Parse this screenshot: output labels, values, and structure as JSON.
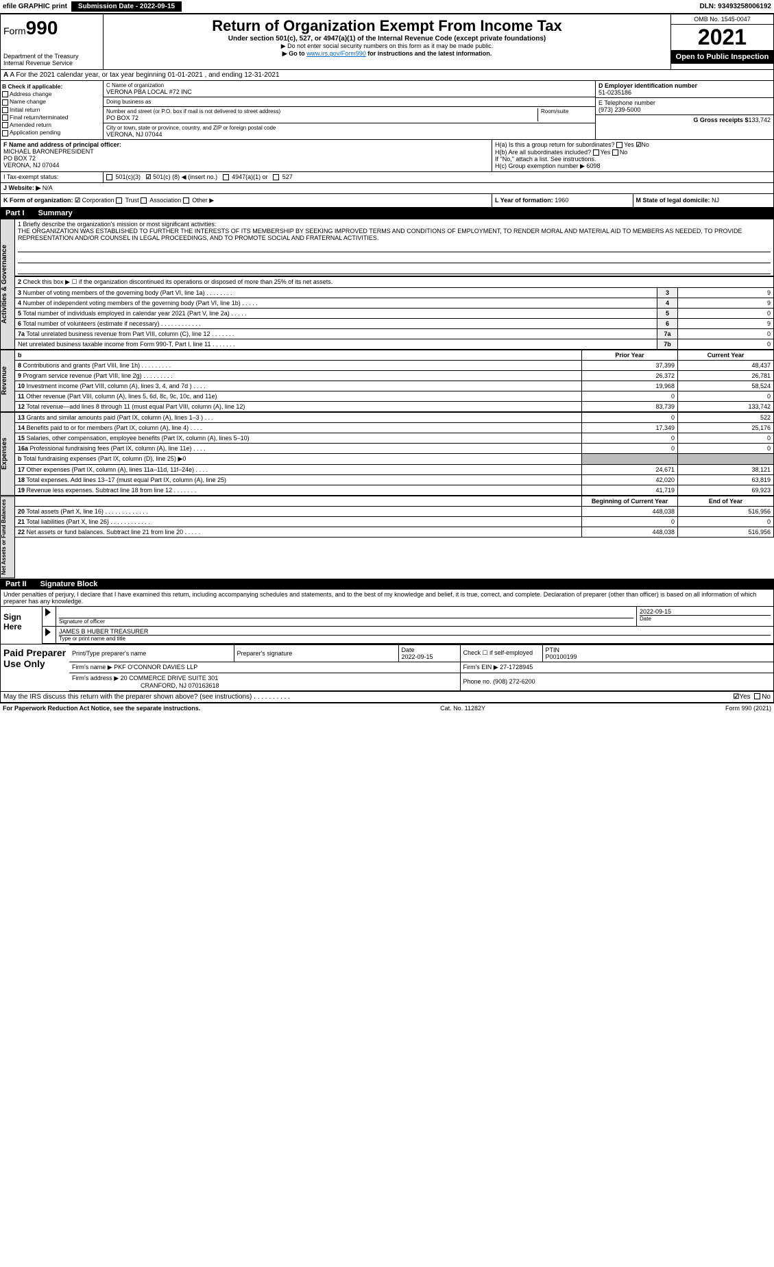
{
  "efile": {
    "graphic": "efile GRAPHIC print",
    "sub_label": "Submission Date - 2022-09-15",
    "dln": "DLN: 93493258006192"
  },
  "header": {
    "form_prefix": "Form",
    "form_num": "990",
    "title": "Return of Organization Exempt From Income Tax",
    "sub1": "Under section 501(c), 527, or 4947(a)(1) of the Internal Revenue Code (except private foundations)",
    "sub2": "▶ Do not enter social security numbers on this form as it may be made public.",
    "sub3_pre": "▶ Go to ",
    "sub3_link": "www.irs.gov/Form990",
    "sub3_post": " for instructions and the latest information.",
    "dept": "Department of the Treasury",
    "irs": "Internal Revenue Service",
    "omb": "OMB No. 1545-0047",
    "year": "2021",
    "otp": "Open to Public Inspection"
  },
  "rowA": "A For the 2021 calendar year, or tax year beginning 01-01-2021     , and ending 12-31-2021",
  "colB": {
    "hdr": "B Check if applicable:",
    "items": [
      "Address change",
      "Name change",
      "Initial return",
      "Final return/terminated",
      "Amended return",
      "Application pending"
    ]
  },
  "colC": {
    "name_lbl": "C Name of organization",
    "name": "VERONA PBA LOCAL #72 INC",
    "dba_lbl": "Doing business as",
    "dba": "",
    "addr_lbl": "Number and street (or P.O. box if mail is not delivered to street address)",
    "room_lbl": "Room/suite",
    "addr": "PO BOX 72",
    "city_lbl": "City or town, state or province, country, and ZIP or foreign postal code",
    "city": "VERONA, NJ  07044"
  },
  "colD": {
    "d_lbl": "D Employer identification number",
    "d": "51-0235186",
    "e_lbl": "E Telephone number",
    "e": "(973) 239-5000",
    "g_lbl": "G Gross receipts $",
    "g": "133,742"
  },
  "rowF": {
    "lbl": "F Name and address of principal officer:",
    "name": "MICHAEL BARONEPRESIDENT",
    "addr1": "PO BOX 72",
    "addr2": "VERONA, NJ  07044"
  },
  "rowH": {
    "a": "H(a) Is this a group return for subordinates?",
    "b": "H(b) Are all subordinates included?",
    "b2": "If \"No,\" attach a list. See instructions.",
    "c": "H(c) Group exemption number ▶",
    "c_val": "6098",
    "yes": "Yes",
    "no": "No"
  },
  "rowI": {
    "lbl": "I   Tax-exempt status:",
    "o1": "501(c)(3)",
    "o2_pre": "501(c) (",
    "o2_val": "8",
    "o2_post": ") ◀ (insert no.)",
    "o3": "4947(a)(1) or",
    "o4": "527"
  },
  "rowJ": {
    "lbl": "J   Website: ▶",
    "val": "N/A"
  },
  "rowK": {
    "lbl": "K Form of organization:",
    "o": [
      "Corporation",
      "Trust",
      "Association",
      "Other ▶"
    ],
    "l_lbl": "L Year of formation:",
    "l": "1960",
    "m_lbl": "M State of legal domicile:",
    "m": "NJ"
  },
  "part1": {
    "num": "Part I",
    "title": "Summary"
  },
  "vtabs": {
    "ag": "Activities & Governance",
    "rev": "Revenue",
    "exp": "Expenses",
    "na": "Net Assets or Fund Balances"
  },
  "mission": {
    "lbl": "1  Briefly describe the organization's mission or most significant activities:",
    "txt": "THE ORGANIZATION WAS ESTABLISHED TO FURTHER THE INTERESTS OF ITS MEMBERSHIP BY SEEKING IMPROVED TERMS AND CONDITIONS OF EMPLOYMENT, TO RENDER MORAL AND MATERIAL AID TO MEMBERS AS NEEDED, TO PROVIDE REPRESENTATION AND/OR COUNSEL IN LEGAL PROCEEDINGS, AND TO PROMOTE SOCIAL AND FRATERNAL ACTIVITIES."
  },
  "ag_lines": [
    {
      "n": "2",
      "t": "Check this box ▶ ☐ if the organization discontinued its operations or disposed of more than 25% of its net assets."
    },
    {
      "n": "3",
      "t": "Number of voting members of the governing body (Part VI, line 1a)  .   .   .   .   .   .   .   .",
      "k": "3",
      "v": "9"
    },
    {
      "n": "4",
      "t": "Number of independent voting members of the governing body (Part VI, line 1b)  .   .   .   .   .",
      "k": "4",
      "v": "9"
    },
    {
      "n": "5",
      "t": "Total number of individuals employed in calendar year 2021 (Part V, line 2a)   .   .   .   .   .",
      "k": "5",
      "v": "0"
    },
    {
      "n": "6",
      "t": "Total number of volunteers (estimate if necessary)    .   .   .   .   .   .   .   .   .   .   .   .",
      "k": "6",
      "v": "9"
    },
    {
      "n": "7a",
      "t": "Total unrelated business revenue from Part VIII, column (C), line 12  .   .   .   .   .   .   .",
      "k": "7a",
      "v": "0"
    },
    {
      "n": "",
      "t": "Net unrelated business taxable income from Form 990-T, Part I, line 11   .   .   .   .   .   .   .",
      "k": "7b",
      "v": "0"
    }
  ],
  "yr_hdr": {
    "b": "b",
    "py": "Prior Year",
    "cy": "Current Year"
  },
  "rev_lines": [
    {
      "n": "8",
      "t": "Contributions and grants (Part VIII, line 1h) .   .   .   .   .   .   .   .   .",
      "p": "37,399",
      "c": "48,437"
    },
    {
      "n": "9",
      "t": "Program service revenue (Part VIII, line 2g) .   .   .   .   .   .   .   .   .",
      "p": "26,372",
      "c": "26,781"
    },
    {
      "n": "10",
      "t": "Investment income (Part VIII, column (A), lines 3, 4, and 7d ) .   .   .   .",
      "p": "19,968",
      "c": "58,524"
    },
    {
      "n": "11",
      "t": "Other revenue (Part VIII, column (A), lines 5, 6d, 8c, 9c, 10c, and 11e)",
      "p": "0",
      "c": "0"
    },
    {
      "n": "12",
      "t": "Total revenue—add lines 8 through 11 (must equal Part VIII, column (A), line 12)",
      "p": "83,739",
      "c": "133,742"
    }
  ],
  "exp_lines": [
    {
      "n": "13",
      "t": "Grants and similar amounts paid (Part IX, column (A), lines 1–3 ) .   .   .",
      "p": "0",
      "c": "522"
    },
    {
      "n": "14",
      "t": "Benefits paid to or for members (Part IX, column (A), line 4) .   .   .   .",
      "p": "17,349",
      "c": "25,176"
    },
    {
      "n": "15",
      "t": "Salaries, other compensation, employee benefits (Part IX, column (A), lines 5–10)",
      "p": "0",
      "c": "0"
    },
    {
      "n": "16a",
      "t": "Professional fundraising fees (Part IX, column (A), line 11e) .   .   .   .",
      "p": "0",
      "c": "0"
    },
    {
      "n": "b",
      "t": "Total fundraising expenses (Part IX, column (D), line 25) ▶0",
      "grey": true
    },
    {
      "n": "17",
      "t": "Other expenses (Part IX, column (A), lines 11a–11d, 11f–24e) .   .   .   .",
      "p": "24,671",
      "c": "38,121"
    },
    {
      "n": "18",
      "t": "Total expenses. Add lines 13–17 (must equal Part IX, column (A), line 25)",
      "p": "42,020",
      "c": "63,819"
    },
    {
      "n": "19",
      "t": "Revenue less expenses. Subtract line 18 from line 12 .   .   .   .   .   .   .",
      "p": "41,719",
      "c": "69,923"
    }
  ],
  "na_hdr": {
    "b": "Beginning of Current Year",
    "e": "End of Year"
  },
  "na_lines": [
    {
      "n": "20",
      "t": "Total assets (Part X, line 16) .   .   .   .   .   .   .   .   .   .   .   .   .",
      "p": "448,038",
      "c": "516,956"
    },
    {
      "n": "21",
      "t": "Total liabilities (Part X, line 26) .   .   .   .   .   .   .   .   .   .   .   .",
      "p": "0",
      "c": "0"
    },
    {
      "n": "22",
      "t": "Net assets or fund balances. Subtract line 21 from line 20  .   .   .   .   .",
      "p": "448,038",
      "c": "516,956"
    }
  ],
  "part2": {
    "num": "Part II",
    "title": "Signature Block"
  },
  "sig": {
    "decl": "Under penalties of perjury, I declare that I have examined this return, including accompanying schedules and statements, and to the best of my knowledge and belief, it is true, correct, and complete. Declaration of preparer (other than officer) is based on all information of which preparer has any knowledge.",
    "here": "Sign Here",
    "sig_lbl": "Signature of officer",
    "date_lbl": "Date",
    "date": "2022-09-15",
    "name": "JAMES B HUBER  TREASURER",
    "name_lbl": "Type or print name and title"
  },
  "paid": {
    "hdr": "Paid Preparer Use Only",
    "c1": "Print/Type preparer's name",
    "c2": "Preparer's signature",
    "c3": "Date",
    "c3v": "2022-09-15",
    "c4": "Check ☐ if self-employed",
    "c5": "PTIN",
    "c5v": "P00100199",
    "firm_lbl": "Firm's name      ▶",
    "firm": "PKF O'CONNOR DAVIES LLP",
    "ein_lbl": "Firm's EIN ▶",
    "ein": "27-1728945",
    "addr_lbl": "Firm's address ▶",
    "addr1": "20 COMMERCE DRIVE SUITE 301",
    "addr2": "CRANFORD, NJ  070163618",
    "ph_lbl": "Phone no.",
    "ph": "(908) 272-6200"
  },
  "discuss": {
    "t": "May the IRS discuss this return with the preparer shown above? (see instructions)   .   .   .   .   .   .   .   .   .   .",
    "yes": "Yes",
    "no": "No"
  },
  "foot": {
    "l": "For Paperwork Reduction Act Notice, see the separate instructions.",
    "c": "Cat. No. 11282Y",
    "r": "Form 990 (2021)"
  }
}
